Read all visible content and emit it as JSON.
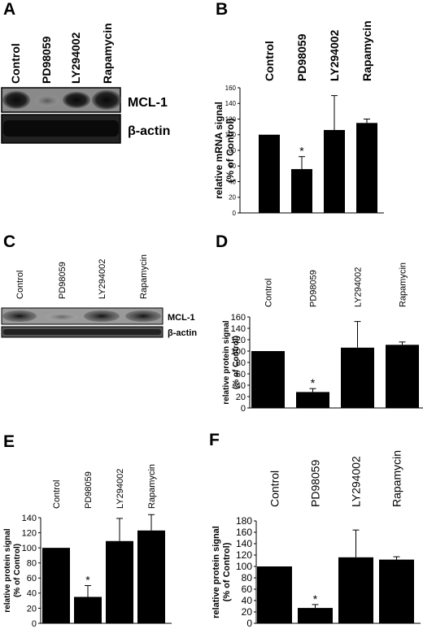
{
  "panels": {
    "A": {
      "letter": "A",
      "lanes": [
        "Control",
        "PD98059",
        "LY294002",
        "Rapamycin"
      ],
      "bands": [
        "MCL-1",
        "β-actin"
      ]
    },
    "C": {
      "letter": "C",
      "lanes": [
        "Control",
        "PD98059",
        "LY294002",
        "Rapamycin"
      ],
      "bands": [
        "MCL-1",
        "β-actin"
      ]
    }
  },
  "chart_data": [
    {
      "id": "B",
      "letter": "B",
      "type": "bar",
      "categories": [
        "Control",
        "PD98059",
        "LY294002",
        "Rapamycin"
      ],
      "values": [
        100,
        56,
        106,
        115
      ],
      "errors": [
        0,
        16,
        44,
        5
      ],
      "significance": [
        "",
        "*",
        "",
        ""
      ],
      "ylabel_lines": [
        "relative mRNA signal",
        "(% of Control)"
      ],
      "ylim": [
        0,
        160
      ],
      "yticks": [
        0,
        20,
        40,
        60,
        80,
        100,
        120,
        140,
        160
      ],
      "grid": false
    },
    {
      "id": "D",
      "letter": "D",
      "type": "bar",
      "categories": [
        "Control",
        "PD98059",
        "LY294002",
        "Rapamycin"
      ],
      "values": [
        100,
        28,
        106,
        111
      ],
      "errors": [
        0,
        6,
        46,
        5
      ],
      "significance": [
        "",
        "*",
        "",
        ""
      ],
      "ylabel_lines": [
        "relative protein signal",
        "(% of Control)"
      ],
      "ylim": [
        0,
        160
      ],
      "yticks": [
        0,
        20,
        40,
        60,
        80,
        100,
        120,
        140,
        160
      ],
      "grid": false
    },
    {
      "id": "E",
      "letter": "E",
      "type": "bar",
      "categories": [
        "Control",
        "PD98059",
        "LY294002",
        "Rapamycin"
      ],
      "values": [
        100,
        35,
        109,
        123
      ],
      "errors": [
        0,
        15,
        30,
        21
      ],
      "significance": [
        "",
        "*",
        "",
        ""
      ],
      "ylabel_lines": [
        "relative protein signal",
        "(% of Control)"
      ],
      "ylim": [
        0,
        140
      ],
      "yticks": [
        0,
        20,
        40,
        60,
        80,
        100,
        120,
        140
      ],
      "grid": false
    },
    {
      "id": "F",
      "letter": "F",
      "type": "bar",
      "categories": [
        "Control",
        "PD98059",
        "LY294002",
        "Rapamycin"
      ],
      "values": [
        100,
        27,
        116,
        112
      ],
      "errors": [
        0,
        6,
        48,
        5
      ],
      "significance": [
        "",
        "*",
        "",
        ""
      ],
      "ylabel_lines": [
        "relative protein signal",
        "(% of Control)"
      ],
      "ylim": [
        0,
        180
      ],
      "yticks": [
        0,
        20,
        40,
        60,
        80,
        100,
        120,
        140,
        160,
        180
      ],
      "grid": false
    }
  ]
}
